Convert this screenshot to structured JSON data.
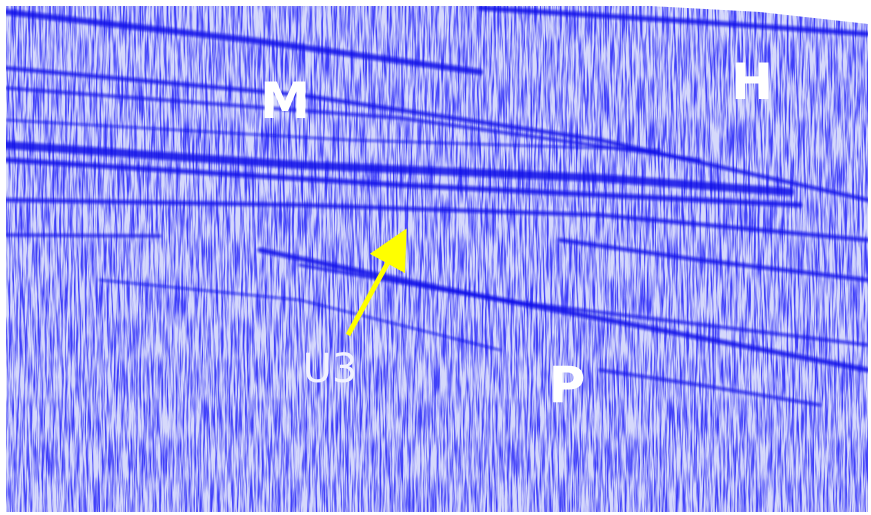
{
  "annotations": {
    "m": "M",
    "h": "H",
    "u3": "U3",
    "p": "P"
  }
}
